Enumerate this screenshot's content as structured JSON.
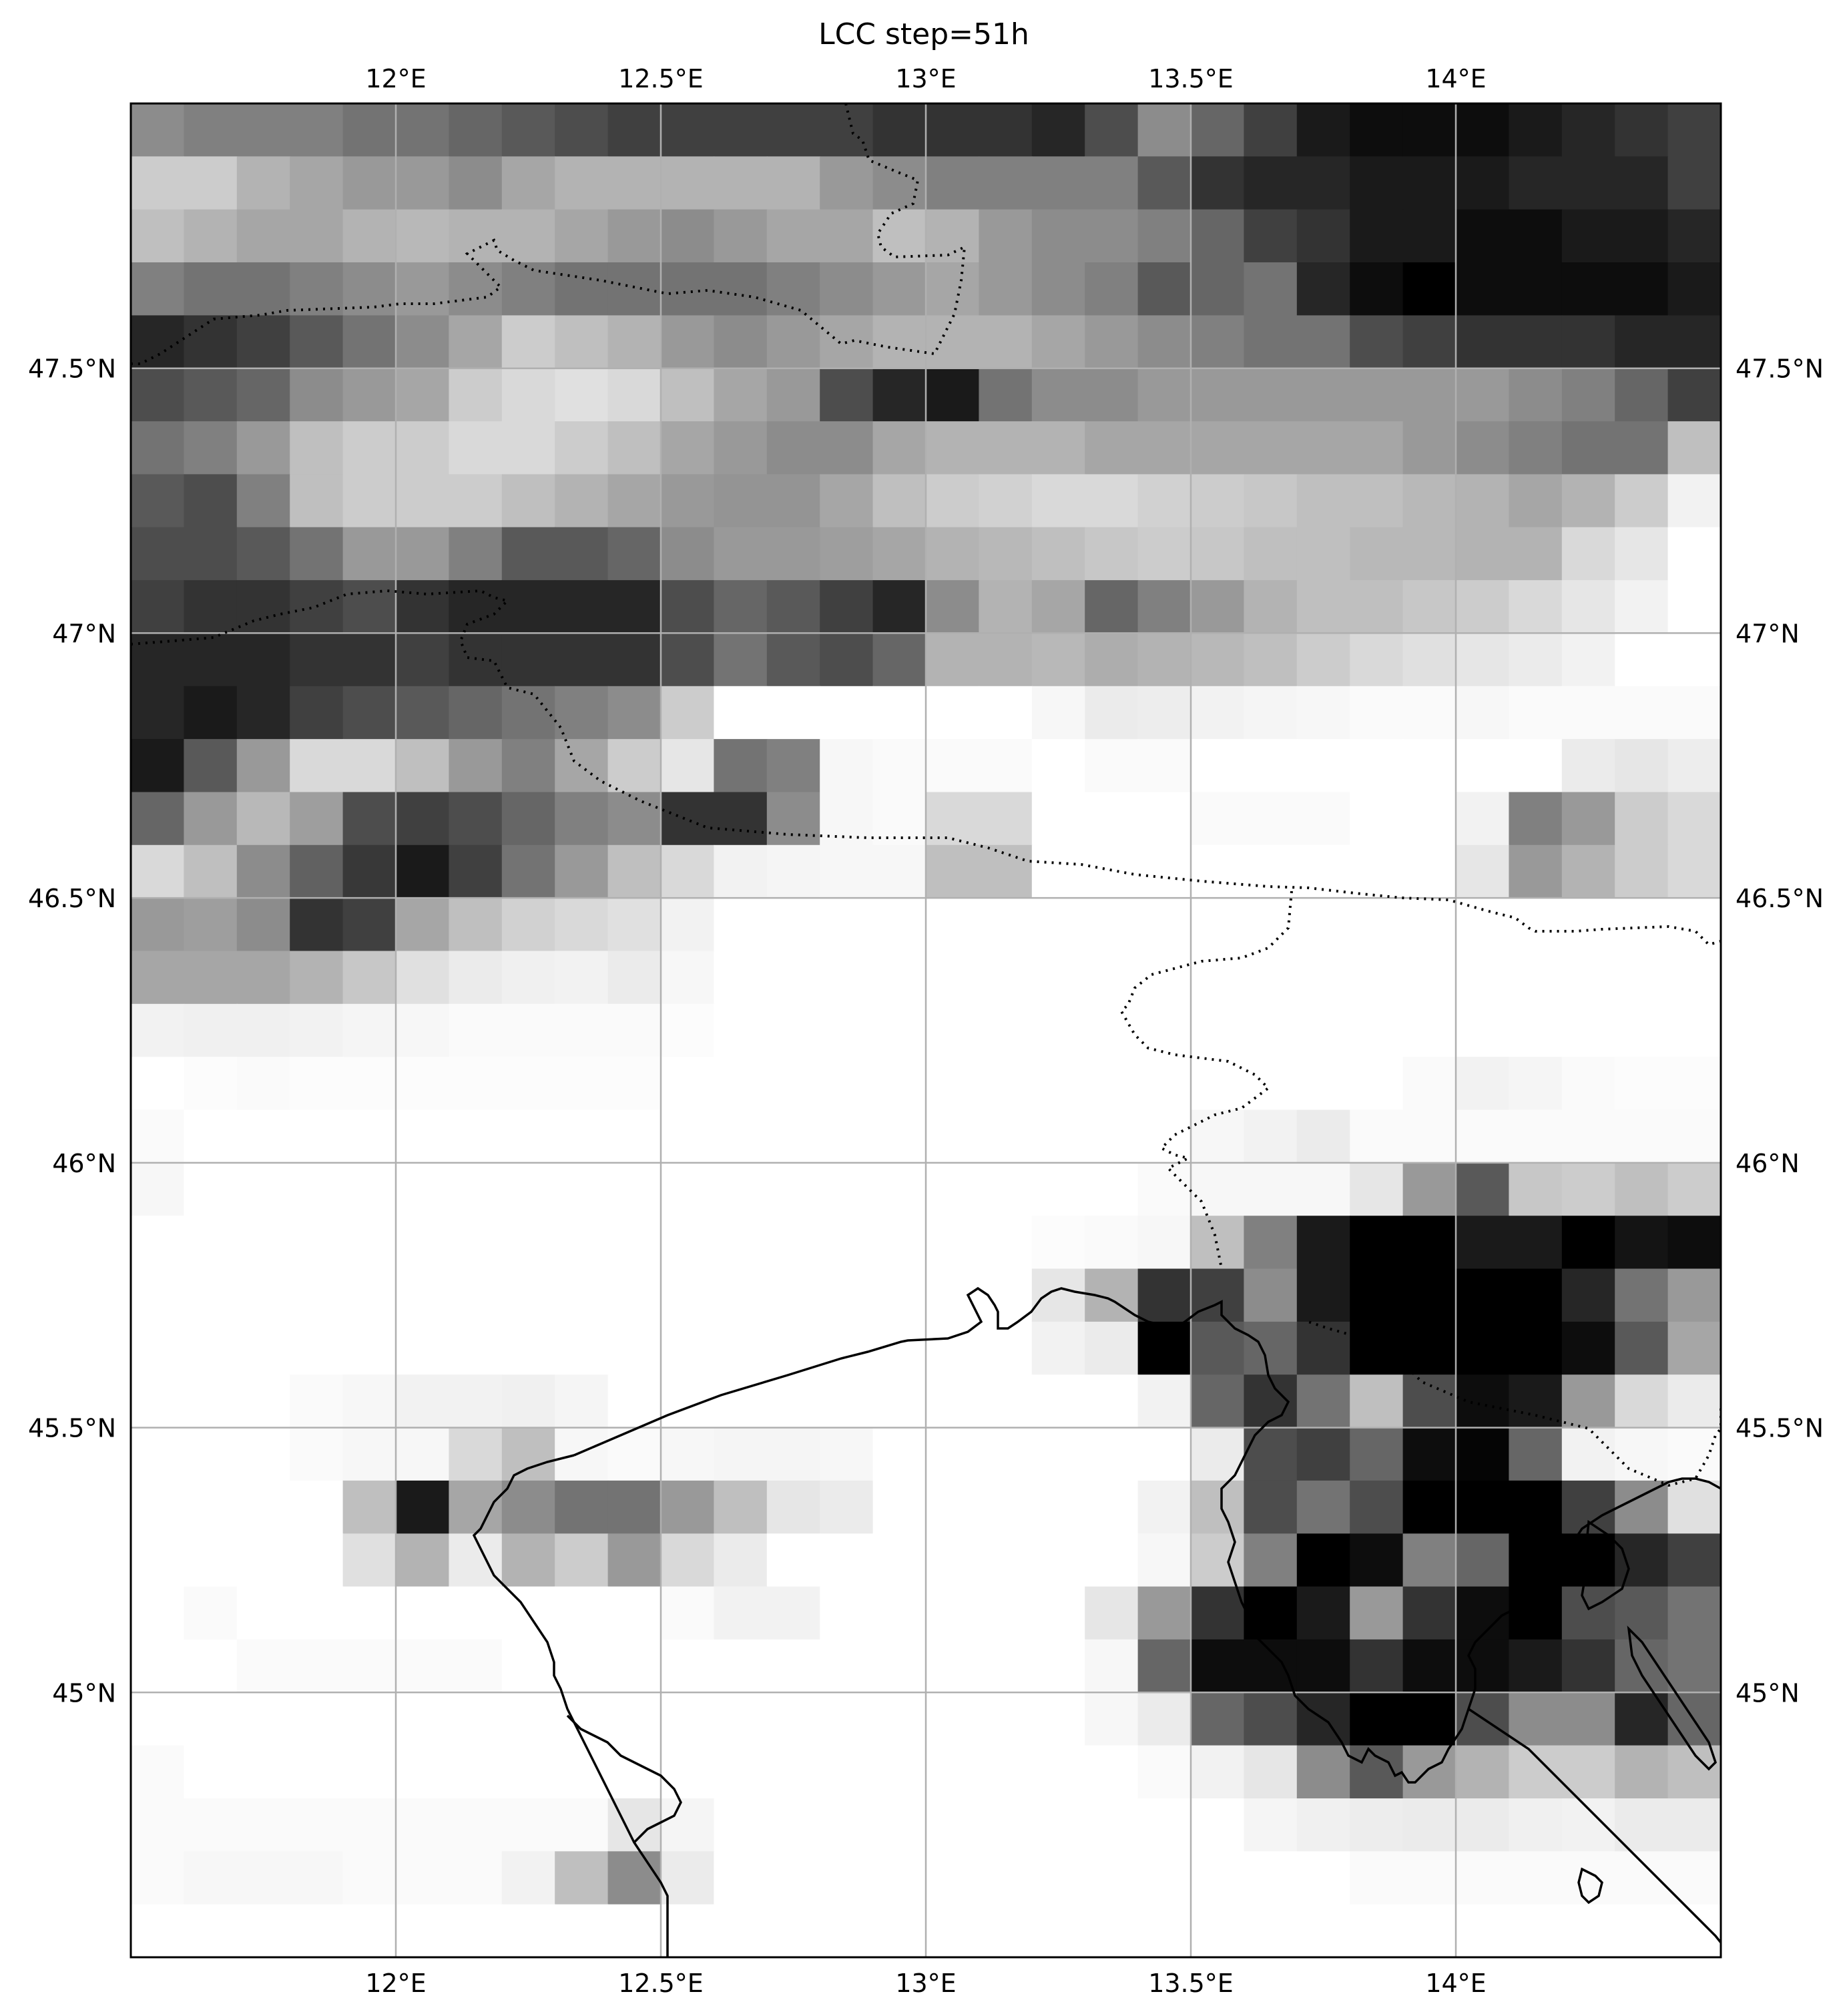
{
  "title": "LCC step=51h",
  "map": {
    "projection": "PlateCarree",
    "extent": {
      "lon": [
        11.5,
        14.5
      ],
      "lat": [
        44.5,
        48.0
      ]
    },
    "gridlines": true,
    "colormap": "greys",
    "value_range": [
      0,
      1
    ]
  },
  "x_ticks": [
    {
      "lon": 12.0,
      "label": "12°E"
    },
    {
      "lon": 12.5,
      "label": "12.5°E"
    },
    {
      "lon": 13.0,
      "label": "13°E"
    },
    {
      "lon": 13.5,
      "label": "13.5°E"
    },
    {
      "lon": 14.0,
      "label": "14°E"
    }
  ],
  "y_ticks": [
    {
      "lat": 47.5,
      "label": "47.5°N"
    },
    {
      "lat": 47.0,
      "label": "47°N"
    },
    {
      "lat": 46.5,
      "label": "46.5°N"
    },
    {
      "lat": 46.0,
      "label": "46°N"
    },
    {
      "lat": 45.5,
      "label": "45.5°N"
    },
    {
      "lat": 45.0,
      "label": "45°N"
    }
  ],
  "field": {
    "variable": "LCC",
    "grid": {
      "lon0": 11.5,
      "lat0": 48.0,
      "dlon": 0.1,
      "dlat": 0.1
    },
    "rows": [
      [
        0.55,
        0.5,
        0.5,
        0.5,
        0.45,
        0.45,
        0.4,
        0.35,
        0.3,
        0.25,
        0.25,
        0.25,
        0.25,
        0.25,
        0.2,
        0.2,
        0.2,
        0.15,
        0.3,
        0.55,
        0.4,
        0.25,
        0.1,
        0.05,
        0.05,
        0.05,
        0.1,
        0.15,
        0.2,
        0.25,
        0.3
      ],
      [
        0.8,
        0.8,
        0.7,
        0.65,
        0.6,
        0.6,
        0.55,
        0.65,
        0.7,
        0.7,
        0.7,
        0.7,
        0.7,
        0.6,
        0.55,
        0.5,
        0.5,
        0.5,
        0.5,
        0.35,
        0.2,
        0.15,
        0.15,
        0.1,
        0.1,
        0.1,
        0.15,
        0.15,
        0.15,
        0.25,
        0.3
      ],
      [
        0.75,
        0.7,
        0.65,
        0.65,
        0.7,
        0.72,
        0.7,
        0.7,
        0.65,
        0.6,
        0.55,
        0.6,
        0.65,
        0.65,
        0.75,
        0.7,
        0.6,
        0.55,
        0.55,
        0.5,
        0.4,
        0.25,
        0.2,
        0.1,
        0.1,
        0.05,
        0.05,
        0.1,
        0.1,
        0.15,
        0.2
      ],
      [
        0.5,
        0.45,
        0.45,
        0.5,
        0.55,
        0.6,
        0.55,
        0.5,
        0.45,
        0.45,
        0.45,
        0.45,
        0.5,
        0.55,
        0.6,
        0.65,
        0.6,
        0.55,
        0.5,
        0.35,
        0.4,
        0.45,
        0.15,
        0.05,
        0.0,
        0.05,
        0.05,
        0.05,
        0.05,
        0.1,
        0.15
      ],
      [
        0.15,
        0.2,
        0.25,
        0.35,
        0.45,
        0.55,
        0.65,
        0.8,
        0.75,
        0.7,
        0.6,
        0.55,
        0.6,
        0.65,
        0.7,
        0.7,
        0.7,
        0.65,
        0.6,
        0.55,
        0.5,
        0.45,
        0.45,
        0.3,
        0.25,
        0.2,
        0.2,
        0.2,
        0.15,
        0.15,
        0.1
      ],
      [
        0.3,
        0.35,
        0.4,
        0.55,
        0.6,
        0.65,
        0.8,
        0.85,
        0.88,
        0.85,
        0.75,
        0.65,
        0.6,
        0.3,
        0.15,
        0.1,
        0.45,
        0.55,
        0.55,
        0.6,
        0.6,
        0.6,
        0.6,
        0.6,
        0.6,
        0.6,
        0.55,
        0.5,
        0.4,
        0.25,
        0.5
      ],
      [
        0.45,
        0.5,
        0.6,
        0.75,
        0.8,
        0.8,
        0.85,
        0.85,
        0.8,
        0.75,
        0.65,
        0.6,
        0.55,
        0.55,
        0.65,
        0.7,
        0.7,
        0.7,
        0.65,
        0.65,
        0.65,
        0.65,
        0.65,
        0.65,
        0.6,
        0.55,
        0.5,
        0.45,
        0.45,
        0.75,
        1.0
      ],
      [
        0.35,
        0.3,
        0.5,
        0.75,
        0.8,
        0.8,
        0.8,
        0.75,
        0.7,
        0.65,
        0.6,
        0.58,
        0.58,
        0.65,
        0.75,
        0.8,
        0.82,
        0.85,
        0.85,
        0.82,
        0.8,
        0.78,
        0.75,
        0.75,
        0.72,
        0.7,
        0.65,
        0.7,
        0.8,
        0.95,
        1.0
      ],
      [
        0.3,
        0.3,
        0.35,
        0.45,
        0.6,
        0.6,
        0.5,
        0.35,
        0.35,
        0.4,
        0.55,
        0.6,
        0.6,
        0.62,
        0.65,
        0.7,
        0.72,
        0.75,
        0.78,
        0.8,
        0.78,
        0.75,
        0.75,
        0.72,
        0.72,
        0.7,
        0.7,
        0.85,
        0.9,
        1.0,
        1.0
      ],
      [
        0.25,
        0.2,
        0.2,
        0.25,
        0.3,
        0.2,
        0.15,
        0.15,
        0.15,
        0.15,
        0.3,
        0.4,
        0.35,
        0.25,
        0.15,
        0.55,
        0.7,
        0.65,
        0.4,
        0.5,
        0.6,
        0.7,
        0.75,
        0.75,
        0.78,
        0.8,
        0.85,
        0.9,
        0.95,
        1.0,
        1.0
      ],
      [
        0.15,
        0.15,
        0.15,
        0.2,
        0.2,
        0.25,
        0.2,
        0.2,
        0.2,
        0.2,
        0.3,
        0.45,
        0.35,
        0.3,
        0.4,
        0.7,
        0.7,
        0.72,
        0.68,
        0.7,
        0.72,
        0.75,
        0.8,
        0.85,
        0.88,
        0.9,
        0.92,
        0.95,
        1.0,
        1.0,
        1.0
      ],
      [
        0.15,
        0.1,
        0.15,
        0.25,
        0.3,
        0.35,
        0.4,
        0.45,
        0.5,
        0.55,
        0.8,
        1.0,
        1.0,
        1.0,
        1.0,
        1.0,
        1.0,
        0.97,
        0.92,
        0.93,
        0.95,
        0.96,
        0.97,
        0.98,
        0.98,
        0.97,
        0.98,
        0.98,
        0.98,
        0.98,
        1.0
      ],
      [
        0.1,
        0.35,
        0.6,
        0.85,
        0.85,
        0.75,
        0.6,
        0.5,
        0.65,
        0.8,
        0.9,
        0.45,
        0.5,
        0.97,
        0.98,
        0.98,
        0.98,
        1.0,
        0.98,
        0.98,
        1.0,
        1.0,
        1.0,
        1.0,
        1.0,
        1.0,
        1.0,
        0.92,
        0.9,
        0.93,
        0.97
      ],
      [
        0.4,
        0.6,
        0.72,
        0.62,
        0.3,
        0.25,
        0.3,
        0.4,
        0.5,
        0.55,
        0.2,
        0.2,
        0.55,
        0.97,
        0.98,
        0.85,
        0.85,
        1.0,
        1.0,
        1.0,
        0.98,
        0.98,
        0.98,
        1.0,
        1.0,
        0.95,
        0.5,
        0.6,
        0.8,
        0.85,
        0.9
      ],
      [
        0.85,
        0.75,
        0.55,
        0.38,
        0.22,
        0.1,
        0.25,
        0.45,
        0.6,
        0.75,
        0.85,
        0.95,
        0.96,
        0.97,
        0.97,
        0.75,
        0.75,
        1.0,
        1.0,
        1.0,
        1.0,
        1.0,
        1.0,
        1.0,
        1.0,
        0.9,
        0.6,
        0.7,
        0.8,
        0.85,
        0.88
      ],
      [
        0.6,
        0.62,
        0.55,
        0.2,
        0.25,
        0.65,
        0.75,
        0.82,
        0.85,
        0.88,
        0.95,
        1.0,
        1.0,
        1.0,
        1.0,
        1.0,
        1.0,
        1.0,
        1.0,
        1.0,
        1.0,
        1.0,
        1.0,
        1.0,
        1.0,
        1.0,
        1.0,
        1.0,
        1.0,
        1.0,
        1.0
      ],
      [
        0.65,
        0.65,
        0.65,
        0.7,
        0.78,
        0.88,
        0.92,
        0.94,
        0.95,
        0.92,
        0.97,
        1.0,
        1.0,
        1.0,
        1.0,
        1.0,
        1.0,
        1.0,
        1.0,
        1.0,
        1.0,
        1.0,
        1.0,
        1.0,
        1.0,
        1.0,
        1.0,
        1.0,
        1.0,
        1.0,
        1.0
      ],
      [
        0.95,
        0.94,
        0.94,
        0.95,
        0.96,
        0.97,
        0.98,
        0.98,
        0.98,
        0.98,
        0.99,
        1.0,
        1.0,
        1.0,
        1.0,
        1.0,
        1.0,
        1.0,
        1.0,
        1.0,
        1.0,
        1.0,
        1.0,
        1.0,
        1.0,
        1.0,
        1.0,
        1.0,
        1.0,
        1.0,
        1.0
      ],
      [
        1.0,
        0.99,
        0.98,
        0.99,
        0.99,
        0.99,
        0.99,
        0.99,
        0.99,
        0.99,
        1.0,
        1.0,
        1.0,
        1.0,
        1.0,
        1.0,
        1.0,
        1.0,
        1.0,
        1.0,
        1.0,
        1.0,
        1.0,
        1.0,
        0.98,
        0.95,
        0.96,
        0.98,
        0.99,
        0.99,
        0.99
      ],
      [
        0.98,
        1.0,
        1.0,
        1.0,
        1.0,
        1.0,
        1.0,
        1.0,
        1.0,
        1.0,
        1.0,
        1.0,
        1.0,
        1.0,
        1.0,
        1.0,
        1.0,
        1.0,
        1.0,
        1.0,
        0.97,
        0.95,
        0.92,
        0.98,
        0.98,
        0.98,
        0.98,
        0.98,
        0.98,
        0.98,
        0.98
      ],
      [
        0.97,
        1.0,
        1.0,
        1.0,
        1.0,
        1.0,
        1.0,
        1.0,
        1.0,
        1.0,
        1.0,
        1.0,
        1.0,
        1.0,
        1.0,
        1.0,
        1.0,
        1.0,
        1.0,
        0.98,
        0.97,
        0.97,
        0.97,
        0.9,
        0.6,
        0.35,
        0.78,
        0.8,
        0.75,
        0.8,
        0.85
      ],
      [
        1.0,
        1.0,
        1.0,
        1.0,
        1.0,
        1.0,
        1.0,
        1.0,
        1.0,
        1.0,
        1.0,
        1.0,
        1.0,
        1.0,
        1.0,
        1.0,
        1.0,
        0.99,
        0.98,
        0.97,
        0.75,
        0.5,
        0.1,
        0.0,
        0.0,
        0.1,
        0.1,
        0.0,
        0.08,
        0.05,
        0.25
      ],
      [
        1.0,
        1.0,
        1.0,
        1.0,
        1.0,
        1.0,
        1.0,
        1.0,
        1.0,
        1.0,
        1.0,
        1.0,
        1.0,
        1.0,
        1.0,
        1.0,
        1.0,
        0.9,
        0.7,
        0.2,
        0.25,
        0.55,
        0.1,
        0.0,
        0.0,
        0.0,
        0.0,
        0.15,
        0.45,
        0.6,
        0.6
      ],
      [
        1.0,
        1.0,
        1.0,
        1.0,
        1.0,
        1.0,
        1.0,
        1.0,
        1.0,
        1.0,
        1.0,
        1.0,
        1.0,
        1.0,
        1.0,
        1.0,
        1.0,
        0.95,
        0.92,
        0.0,
        0.35,
        0.4,
        0.2,
        0.0,
        0.0,
        0.0,
        0.0,
        0.05,
        0.35,
        0.65,
        0.75
      ],
      [
        1.0,
        1.0,
        1.0,
        0.98,
        0.97,
        0.95,
        0.95,
        0.94,
        0.96,
        1.0,
        1.0,
        1.0,
        1.0,
        1.0,
        1.0,
        1.0,
        1.0,
        1.0,
        1.0,
        0.95,
        0.4,
        0.2,
        0.45,
        0.75,
        0.3,
        0.05,
        0.1,
        0.6,
        0.85,
        0.92,
        0.95
      ],
      [
        1.0,
        1.0,
        1.0,
        0.98,
        0.97,
        0.97,
        0.85,
        0.75,
        0.97,
        0.98,
        0.97,
        0.96,
        0.96,
        0.97,
        1.0,
        1.0,
        1.0,
        1.0,
        1.0,
        1.0,
        0.92,
        0.3,
        0.25,
        0.4,
        0.05,
        0.02,
        0.4,
        0.95,
        0.97,
        0.98,
        1.0
      ],
      [
        1.0,
        1.0,
        1.0,
        1.0,
        0.75,
        0.1,
        0.65,
        0.55,
        0.45,
        0.45,
        0.6,
        0.75,
        0.9,
        0.92,
        1.0,
        1.0,
        1.0,
        1.0,
        1.0,
        0.95,
        0.75,
        0.3,
        0.45,
        0.3,
        0.0,
        0.0,
        0.0,
        0.25,
        0.55,
        0.88,
        0.95
      ],
      [
        1.0,
        1.0,
        1.0,
        1.0,
        0.88,
        0.7,
        0.92,
        0.7,
        0.8,
        0.6,
        0.85,
        0.92,
        1.0,
        1.0,
        1.0,
        1.0,
        1.0,
        1.0,
        1.0,
        0.97,
        0.8,
        0.5,
        0.0,
        0.05,
        0.5,
        0.4,
        0.0,
        0.0,
        0.15,
        0.25,
        0.2
      ],
      [
        1.0,
        0.98,
        1.0,
        1.0,
        1.0,
        1.0,
        1.0,
        1.0,
        1.0,
        1.0,
        0.98,
        0.95,
        0.95,
        1.0,
        1.0,
        1.0,
        1.0,
        1.0,
        0.9,
        0.6,
        0.2,
        0.0,
        0.1,
        0.6,
        0.2,
        0.05,
        0.0,
        0.3,
        0.35,
        0.45,
        0.0
      ],
      [
        1.0,
        1.0,
        0.98,
        0.98,
        0.98,
        0.98,
        0.98,
        1.0,
        1.0,
        1.0,
        1.0,
        1.0,
        1.0,
        1.0,
        1.0,
        1.0,
        1.0,
        1.0,
        0.97,
        0.4,
        0.05,
        0.05,
        0.05,
        0.2,
        0.05,
        0.05,
        0.1,
        0.2,
        0.4,
        0.45,
        0.15
      ],
      [
        1.0,
        1.0,
        1.0,
        1.0,
        1.0,
        1.0,
        1.0,
        1.0,
        1.0,
        1.0,
        1.0,
        1.0,
        1.0,
        1.0,
        1.0,
        1.0,
        1.0,
        1.0,
        0.97,
        0.92,
        0.4,
        0.3,
        0.15,
        0.0,
        0.0,
        0.3,
        0.55,
        0.55,
        0.15,
        0.4,
        0.55
      ],
      [
        0.98,
        1.0,
        1.0,
        1.0,
        1.0,
        1.0,
        1.0,
        1.0,
        1.0,
        1.0,
        1.0,
        1.0,
        1.0,
        1.0,
        1.0,
        1.0,
        1.0,
        1.0,
        1.0,
        0.98,
        0.95,
        0.9,
        0.55,
        0.35,
        0.6,
        0.7,
        0.8,
        0.8,
        0.7,
        0.75,
        0.8
      ],
      [
        0.98,
        0.98,
        0.98,
        0.98,
        0.98,
        0.98,
        0.98,
        0.98,
        0.98,
        0.9,
        0.96,
        1.0,
        1.0,
        1.0,
        1.0,
        1.0,
        1.0,
        1.0,
        1.0,
        1.0,
        1.0,
        0.96,
        0.94,
        0.93,
        0.92,
        0.92,
        0.94,
        0.95,
        0.92,
        0.92,
        0.95
      ],
      [
        0.98,
        0.97,
        0.97,
        0.97,
        0.98,
        0.98,
        0.98,
        0.95,
        0.75,
        0.55,
        0.92,
        1.0,
        1.0,
        1.0,
        1.0,
        1.0,
        1.0,
        1.0,
        1.0,
        1.0,
        1.0,
        1.0,
        1.0,
        0.98,
        0.98,
        0.98,
        0.98,
        0.98,
        0.98,
        0.98,
        0.98
      ],
      [
        1.0,
        1.0,
        1.0,
        1.0,
        1.0,
        1.0,
        1.0,
        1.0,
        1.0,
        1.0,
        1.0,
        1.0,
        1.0,
        1.0,
        1.0,
        1.0,
        1.0,
        1.0,
        1.0,
        1.0,
        1.0,
        1.0,
        1.0,
        1.0,
        1.0,
        1.0,
        1.0,
        1.0,
        1.0,
        1.0,
        0.95
      ]
    ]
  },
  "colors": {
    "frame": "#000000",
    "grid": "#b0b0b0",
    "coastline": "#000000",
    "border": "#000000"
  }
}
